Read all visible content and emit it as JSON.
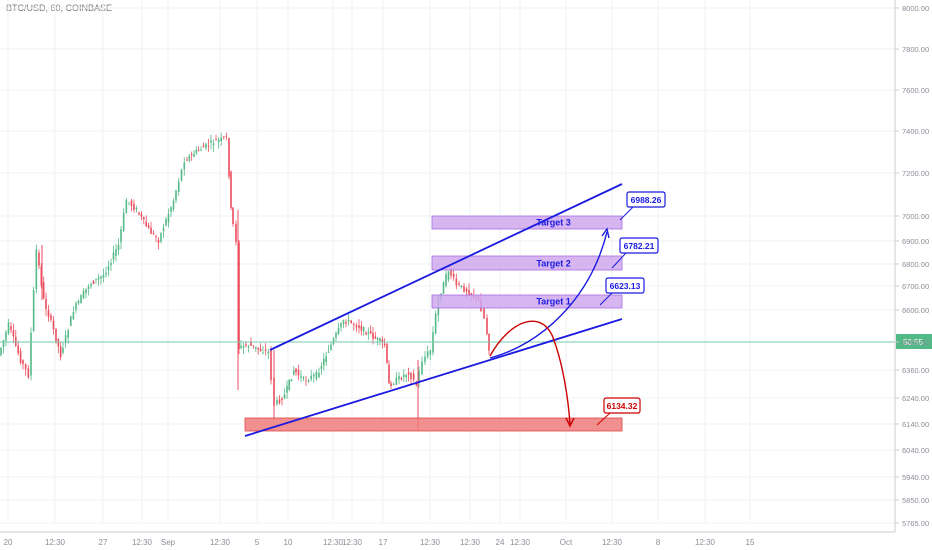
{
  "header": {
    "symbol_label": "BTC/USD, 60, COINBASE"
  },
  "chart_data": {
    "type": "candlestick",
    "title": "",
    "y_ticks": [
      "8000.00",
      "7800.00",
      "7600.00",
      "7400.00",
      "7200.00",
      "7000.00",
      "6900.00",
      "6800.00",
      "6700.00",
      "6600.00",
      "6500.00",
      "6360.00",
      "6240.00",
      "6140.00",
      "6040.00",
      "5940.00",
      "5850.00",
      "5765.00"
    ],
    "x_ticks": [
      "20",
      "12:30",
      "27",
      "12:30",
      "Sep",
      "12:30",
      "5",
      "10",
      "12:30",
      "12:30",
      "17",
      "12:30",
      "12:30",
      "24",
      "12:30",
      "Oct",
      "12:30",
      "8",
      "12:30",
      "15"
    ],
    "current_price_label": "50:55",
    "colors": {
      "up": "#53b987",
      "down": "#eb4d5c",
      "drawing": "#1a1ae0",
      "bear": "#cc0000",
      "zone": "#cfa8ef",
      "stop_zone": "#f07b7b"
    },
    "annotations": {
      "zones": [
        {
          "label": "Target 3"
        },
        {
          "label": "Target 2"
        },
        {
          "label": "Target 1"
        },
        {
          "label": ""
        }
      ],
      "callouts": [
        {
          "label": "6988.26",
          "color": "#1a1ae0"
        },
        {
          "label": "6782.21",
          "color": "#1a1ae0"
        },
        {
          "label": "6623.13",
          "color": "#1a1ae0"
        },
        {
          "label": "6134.32",
          "color": "#cc0000"
        }
      ]
    }
  }
}
